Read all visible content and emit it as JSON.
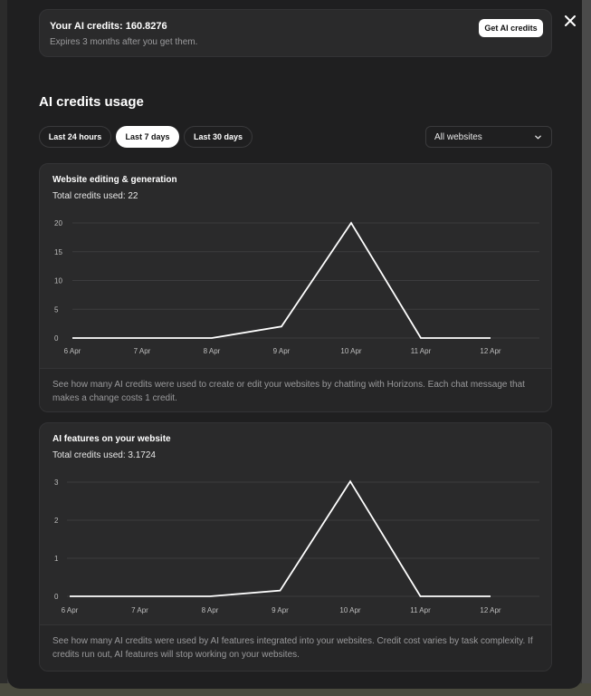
{
  "credits": {
    "title": "Your AI credits: 160.8276",
    "subtitle": "Expires 3 months after you get them.",
    "get_button": "Get AI credits"
  },
  "usage": {
    "title": "AI credits usage",
    "ranges": [
      "Last 24 hours",
      "Last 7 days",
      "Last 30 days"
    ],
    "active_range": 1,
    "website_filter": "All websites"
  },
  "cards": [
    {
      "title": "Website editing & generation",
      "total": "Total credits used: 22",
      "description": "See how many AI credits were used to create or edit your websites by chatting with Horizons. Each chat message that makes a change costs 1 credit."
    },
    {
      "title": "AI features on your website",
      "total": "Total credits used: 3.1724",
      "description": "See how many AI credits were used by AI features integrated into your websites. Credit cost varies by task complexity. If credits run out, AI features will stop working on your websites."
    }
  ],
  "colors": {
    "background": "#1f1f20",
    "card": "#2a2a2b",
    "line": "#ffffff",
    "grid": "#3c3c3e"
  },
  "chart_data": [
    {
      "type": "line",
      "categories": [
        "6 Apr",
        "7 Apr",
        "8 Apr",
        "9 Apr",
        "10 Apr",
        "11 Apr",
        "12 Apr"
      ],
      "values": [
        0,
        0,
        0,
        2,
        20,
        0,
        0
      ],
      "yticks": [
        0,
        5,
        10,
        15,
        20
      ],
      "ylim": [
        0,
        20
      ],
      "grid": true
    },
    {
      "type": "line",
      "categories": [
        "6 Apr",
        "7 Apr",
        "8 Apr",
        "9 Apr",
        "10 Apr",
        "11 Apr",
        "12 Apr"
      ],
      "values": [
        0,
        0,
        0,
        0.15,
        3.02,
        0,
        0
      ],
      "yticks": [
        0,
        1,
        2,
        3
      ],
      "ylim": [
        0,
        3
      ],
      "grid": true
    }
  ]
}
